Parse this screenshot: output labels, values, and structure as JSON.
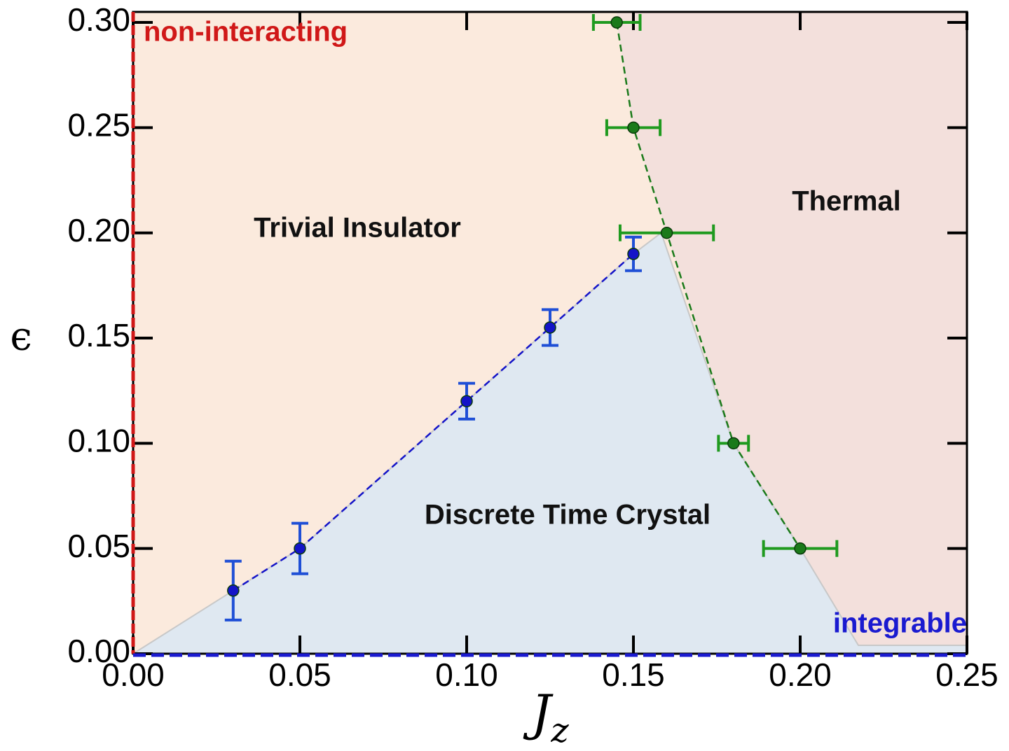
{
  "chart_data": {
    "type": "scatter",
    "xlabel": {
      "base": "J",
      "subscript": "z"
    },
    "ylabel": "ϵ",
    "xlim": [
      0,
      0.25
    ],
    "ylim": [
      0,
      0.305
    ],
    "xticks": [
      {
        "value": 0,
        "label": "0.00"
      },
      {
        "value": 0.05,
        "label": "0.05"
      },
      {
        "value": 0.1,
        "label": "0.10"
      },
      {
        "value": 0.15,
        "label": "0.15"
      },
      {
        "value": 0.2,
        "label": "0.20"
      },
      {
        "value": 0.25,
        "label": "0.25"
      }
    ],
    "yticks": [
      {
        "value": 0,
        "label": "0.00"
      },
      {
        "value": 0.05,
        "label": "0.05"
      },
      {
        "value": 0.1,
        "label": "0.10"
      },
      {
        "value": 0.15,
        "label": "0.15"
      },
      {
        "value": 0.2,
        "label": "0.20"
      },
      {
        "value": 0.25,
        "label": "0.25"
      },
      {
        "value": 0.3,
        "label": "0.30"
      }
    ],
    "series": [
      {
        "color": "#1414c8",
        "errcolor": "#1f4fd6",
        "x": [
          0.03,
          0.05,
          0.1,
          0.125,
          0.15
        ],
        "values": [
          0.03,
          0.05,
          0.12,
          0.155,
          0.19
        ],
        "yerr": [
          0.014,
          0.012,
          0.0085,
          0.0085,
          0.008
        ]
      },
      {
        "color": "#1a7a1a",
        "errcolor": "#1f9a1f",
        "x": [
          0.145,
          0.15,
          0.16,
          0.18,
          0.2
        ],
        "values": [
          0.3,
          0.25,
          0.2,
          0.1,
          0.05
        ],
        "xerr": [
          0.007,
          0.008,
          0.014,
          0.0045,
          0.011
        ]
      }
    ],
    "annotations": [
      "non-interacting",
      "integrable",
      "Trivial Insulator",
      "Thermal",
      "Discrete Time Crystal"
    ]
  }
}
